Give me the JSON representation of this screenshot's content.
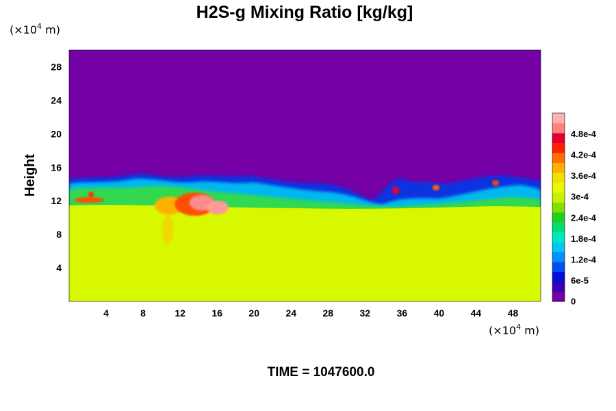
{
  "chart_data": {
    "type": "heatmap",
    "title": "H2S-g Mixing Ratio [kg/kg]",
    "ylabel": "Height",
    "xlabel": "",
    "x_unit": {
      "prefix": "(×10",
      "exp": "4",
      "suffix": " m)"
    },
    "y_unit": {
      "prefix": "(×10",
      "exp": "4",
      "suffix": " m)"
    },
    "xlim": [
      0,
      51
    ],
    "ylim": [
      0,
      30
    ],
    "x_ticks": [
      4,
      8,
      12,
      16,
      20,
      24,
      28,
      32,
      36,
      40,
      44,
      48
    ],
    "x_tick_labels": [
      "4",
      "8",
      "12",
      "16",
      "20",
      "24",
      "28",
      "32",
      "36",
      "40",
      "44",
      "48"
    ],
    "y_ticks": [
      4,
      8,
      12,
      16,
      20,
      24,
      28
    ],
    "y_tick_labels": [
      "4",
      "8",
      "12",
      "16",
      "20",
      "24",
      "28"
    ],
    "colorbar": {
      "min": 0,
      "max": 0.00054,
      "ticks": [
        0,
        6e-05,
        0.00012,
        0.00018,
        0.00024,
        0.0003,
        0.00036,
        0.00042,
        0.00048
      ],
      "tick_labels": [
        "0",
        "6e-5",
        "1.2e-4",
        "1.8e-4",
        "2.4e-4",
        "3e-4",
        "3.6e-4",
        "4.2e-4",
        "4.8e-4"
      ],
      "colors": [
        "#7400a6",
        "#3a00b8",
        "#0010d8",
        "#0050f0",
        "#0090ff",
        "#00c8f0",
        "#00e8c0",
        "#00e070",
        "#20d020",
        "#80e000",
        "#c8f000",
        "#e8f800",
        "#f0e000",
        "#ffb000",
        "#ff7000",
        "#ff2000",
        "#e00030",
        "#ff8080",
        "#ffb0b0"
      ]
    },
    "field_description": {
      "lower_layer_value": 0.00036,
      "upper_layer_value": 0,
      "transition_height_range": [
        11,
        15
      ]
    },
    "footer": "TIME = 1047600.0"
  }
}
